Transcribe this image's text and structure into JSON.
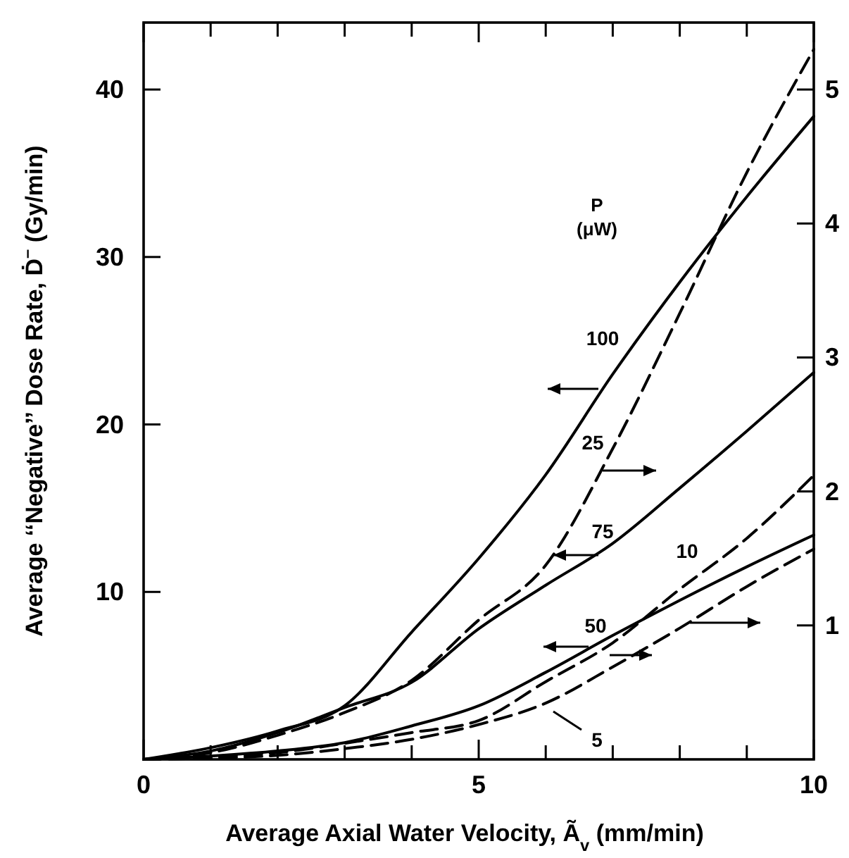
{
  "chart_data": {
    "type": "line",
    "xlabel": "Average Axial Water Velocity, Ã$_{v}$ (mm/min)",
    "ylabel": "Average ‘‘Negative’’ Dose Rate, Ḋ$^{–}$ (Gy/min)",
    "legend_title": "P (μW)",
    "grid": false,
    "x": [
      0,
      1,
      2,
      3,
      4,
      5,
      6,
      7,
      8,
      9,
      10
    ],
    "xlim": [
      0,
      10
    ],
    "xticks": [
      0,
      {
        "value": 1,
        "label": null
      },
      {
        "value": 2,
        "label": null
      },
      {
        "value": 3,
        "label": null
      },
      {
        "value": 4,
        "label": null
      },
      5,
      {
        "value": 6,
        "label": null
      },
      {
        "value": 7,
        "label": null
      },
      {
        "value": 8,
        "label": null
      },
      {
        "value": 9,
        "label": null
      },
      10
    ],
    "ylim": [
      0,
      44
    ],
    "yticks": [
      10,
      20,
      30,
      40
    ],
    "y2lim": [
      0,
      5.5
    ],
    "y2ticks": [
      1,
      2,
      3,
      4,
      5
    ],
    "series": [
      {
        "name": "100",
        "color": "#000000",
        "line_style": "solid",
        "values": [
          0,
          0.7,
          1.7,
          3.2,
          7.6,
          12,
          17,
          23,
          28.5,
          33.6,
          38.4
        ]
      },
      {
        "name": "25",
        "color": "#000000",
        "line_style": "dashed",
        "axis": "y2",
        "values": [
          0,
          0.05,
          0.18,
          0.35,
          0.59,
          1.04,
          1.45,
          2.32,
          3.33,
          4.38,
          5.3
        ]
      },
      {
        "name": "75",
        "color": "#000000",
        "line_style": "solid",
        "values": [
          0,
          0.5,
          1.6,
          3.1,
          4.6,
          7.8,
          10.4,
          12.9,
          16.2,
          19.6,
          23.1
        ]
      },
      {
        "name": "50",
        "color": "#000000",
        "line_style": "solid",
        "values": [
          0,
          0.2,
          0.5,
          1.0,
          2.0,
          3.2,
          5.2,
          7.4,
          9.5,
          11.5,
          13.4
        ]
      },
      {
        "name": "10",
        "color": "#000000",
        "line_style": "dashed",
        "axis": "y2",
        "values": [
          0,
          0.02,
          0.05,
          0.12,
          0.2,
          0.29,
          0.58,
          0.87,
          1.27,
          1.65,
          2.12
        ]
      },
      {
        "name": "5",
        "color": "#000000",
        "line_style": "dashed",
        "axis": "y2",
        "values": [
          0,
          0.01,
          0.03,
          0.08,
          0.15,
          0.26,
          0.42,
          0.69,
          0.98,
          1.29,
          1.57
        ]
      }
    ]
  }
}
